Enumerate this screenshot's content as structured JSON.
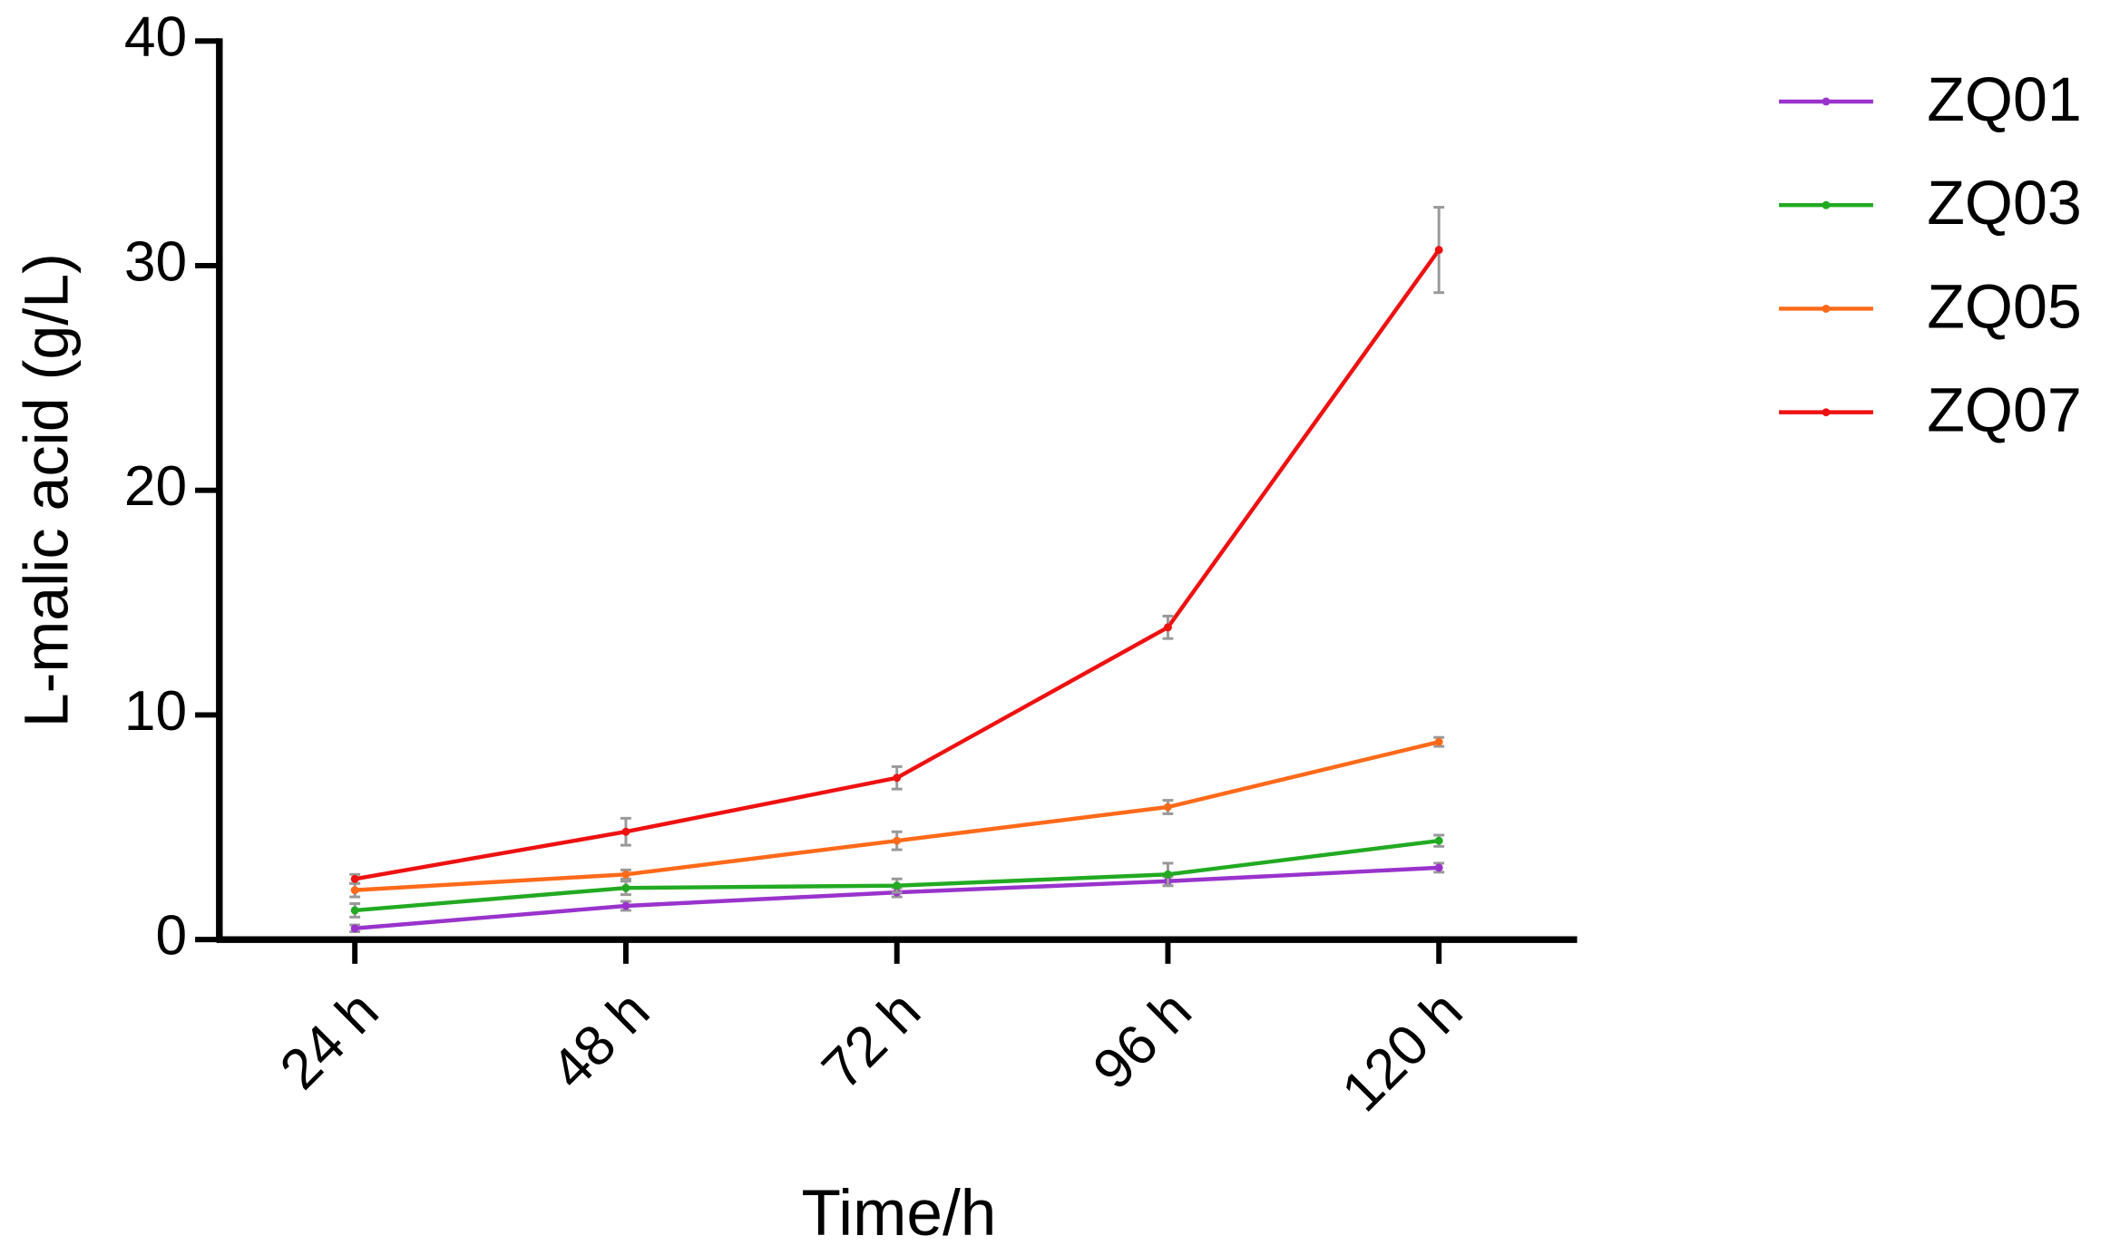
{
  "chart_data": {
    "type": "line",
    "x_label": "Time/h",
    "y_label": "L-malic acid (g/L)",
    "categories": [
      "24 h",
      "48 h",
      "72 h",
      "96 h",
      "120 h"
    ],
    "ylim": [
      0,
      40
    ],
    "yticks": [
      0,
      10,
      20,
      30,
      40
    ],
    "legend": "right",
    "error_color": "#999999",
    "series": [
      {
        "name": "ZQ01",
        "color": "#9933cc",
        "values": [
          0.5,
          1.5,
          2.1,
          2.6,
          3.2
        ],
        "errors": [
          0.15,
          0.2,
          0.2,
          0.2,
          0.2
        ]
      },
      {
        "name": "ZQ03",
        "color": "#22aa22",
        "values": [
          1.3,
          2.3,
          2.4,
          2.9,
          4.4
        ],
        "errors": [
          0.3,
          0.3,
          0.3,
          0.5,
          0.25
        ]
      },
      {
        "name": "ZQ05",
        "color": "#ff6a1a",
        "values": [
          2.2,
          2.9,
          4.4,
          5.9,
          8.8
        ],
        "errors": [
          0.3,
          0.2,
          0.4,
          0.3,
          0.2
        ]
      },
      {
        "name": "ZQ07",
        "color": "#ee1111",
        "values": [
          2.7,
          4.8,
          7.2,
          13.9,
          30.7
        ],
        "errors": [
          0.2,
          0.6,
          0.5,
          0.5,
          1.9
        ]
      }
    ]
  }
}
